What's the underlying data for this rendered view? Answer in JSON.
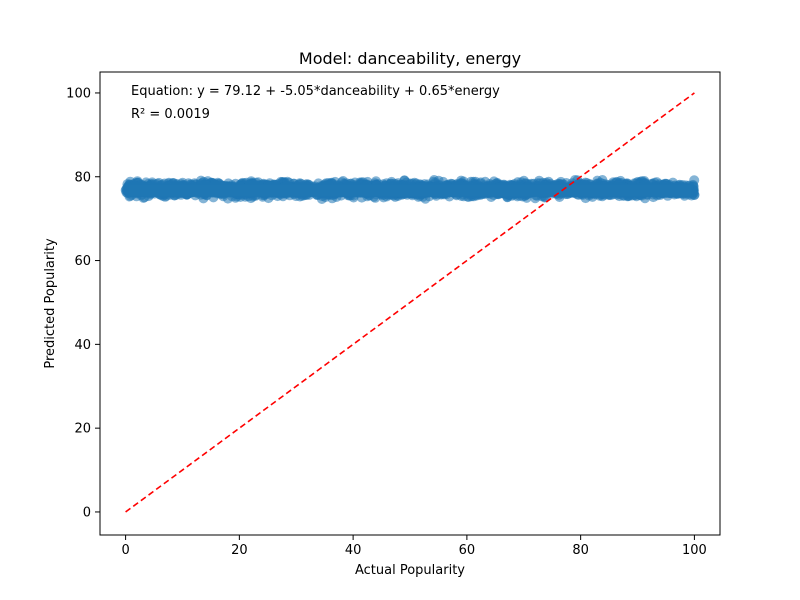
{
  "chart_data": {
    "type": "scatter",
    "title": "Model: danceability, energy",
    "xlabel": "Actual Popularity",
    "ylabel": "Predicted Popularity",
    "xlim": [
      -4.5,
      104.5
    ],
    "ylim": [
      -5.5,
      105
    ],
    "x_ticks": [
      0,
      20,
      40,
      60,
      80,
      100
    ],
    "y_ticks": [
      0,
      20,
      40,
      60,
      80,
      100
    ],
    "x_tick_labels": [
      "0",
      "20",
      "40",
      "60",
      "80",
      "100"
    ],
    "y_tick_labels": [
      "0",
      "20",
      "40",
      "60",
      "80",
      "100"
    ],
    "annotations": {
      "equation": "Equation: y = 79.12 + -5.05*danceability + 0.65*energy",
      "r_squared": "R² = 0.0019"
    },
    "reference_line": {
      "x": [
        0,
        100
      ],
      "y": [
        0,
        100
      ],
      "color": "#ff0000",
      "style": "dashed"
    },
    "points": {
      "color": "#1f77b4",
      "x_range": [
        0,
        100
      ],
      "y_band": [
        74.5,
        79.5
      ],
      "y_center": 76.5
    },
    "grid": false
  }
}
